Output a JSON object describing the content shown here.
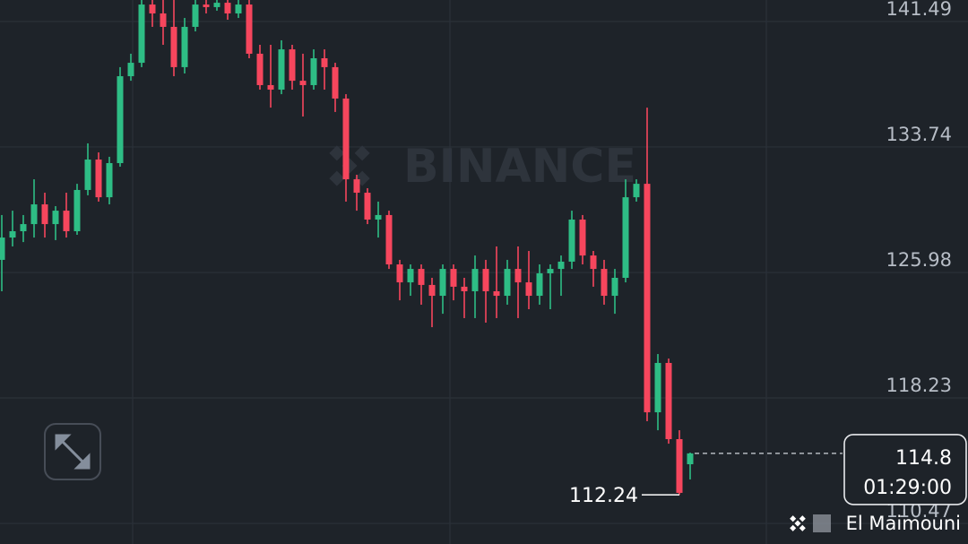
{
  "chart_data": {
    "type": "candlestick",
    "watermark": "BINANCE",
    "countdown": "01:29:00",
    "author": "El Maimouni",
    "up_color": "#2ebd85",
    "down_color": "#f6465d",
    "ylim": [
      109.2,
      142.82
    ],
    "yticks": [
      141.49,
      133.74,
      125.98,
      118.23,
      110.47
    ],
    "grid": true,
    "ohlc": [
      [
        126.76,
        129.53,
        124.82,
        128.14
      ],
      [
        128.14,
        129.8,
        127.59,
        128.53
      ],
      [
        128.53,
        129.53,
        127.86,
        128.97
      ],
      [
        128.97,
        131.74,
        128.14,
        130.19
      ],
      [
        130.19,
        130.91,
        128.14,
        128.97
      ],
      [
        128.97,
        130.08,
        127.98,
        129.8
      ],
      [
        129.8,
        130.91,
        128.14,
        128.53
      ],
      [
        128.53,
        131.46,
        128.31,
        131.08
      ],
      [
        131.08,
        133.96,
        130.75,
        132.96
      ],
      [
        132.96,
        133.4,
        130.36,
        130.63
      ],
      [
        130.63,
        133.13,
        130.19,
        132.74
      ],
      [
        132.74,
        138.67,
        132.52,
        138.11
      ],
      [
        138.11,
        139.5,
        137.83,
        138.94
      ],
      [
        138.94,
        142.82,
        138.67,
        142.54
      ],
      [
        142.54,
        142.82,
        141.16,
        141.99
      ],
      [
        141.99,
        142.82,
        140.05,
        141.16
      ],
      [
        141.16,
        142.82,
        138.11,
        138.67
      ],
      [
        138.67,
        141.71,
        138.28,
        141.16
      ],
      [
        141.16,
        142.82,
        140.88,
        142.54
      ],
      [
        142.54,
        142.82,
        141.99,
        142.38
      ],
      [
        142.38,
        142.82,
        142.16,
        142.65
      ],
      [
        142.65,
        142.82,
        141.6,
        141.99
      ],
      [
        141.99,
        142.82,
        141.71,
        142.54
      ],
      [
        142.54,
        142.82,
        139.22,
        139.5
      ],
      [
        139.5,
        140.05,
        137.28,
        137.56
      ],
      [
        137.56,
        140.05,
        136.17,
        137.28
      ],
      [
        137.28,
        140.33,
        137.0,
        139.77
      ],
      [
        139.77,
        140.05,
        137.28,
        137.83
      ],
      [
        137.83,
        139.5,
        135.62,
        137.56
      ],
      [
        137.56,
        139.77,
        137.28,
        139.22
      ],
      [
        139.22,
        139.77,
        137.28,
        138.67
      ],
      [
        138.67,
        138.94,
        135.9,
        136.73
      ],
      [
        136.73,
        137.0,
        130.36,
        131.74
      ],
      [
        131.74,
        132.02,
        129.8,
        130.91
      ],
      [
        130.91,
        131.19,
        128.97,
        129.25
      ],
      [
        129.25,
        130.36,
        128.14,
        129.53
      ],
      [
        129.53,
        129.8,
        126.2,
        126.48
      ],
      [
        126.48,
        126.76,
        124.26,
        125.37
      ],
      [
        125.37,
        126.48,
        124.54,
        126.2
      ],
      [
        126.2,
        126.48,
        123.99,
        125.21
      ],
      [
        125.21,
        125.65,
        122.6,
        124.54
      ],
      [
        124.54,
        126.48,
        123.43,
        126.2
      ],
      [
        126.2,
        126.48,
        124.26,
        125.1
      ],
      [
        125.1,
        125.65,
        123.16,
        124.82
      ],
      [
        124.82,
        127.03,
        123.16,
        126.2
      ],
      [
        126.2,
        126.76,
        122.88,
        124.82
      ],
      [
        124.82,
        127.59,
        123.16,
        124.54
      ],
      [
        124.54,
        126.76,
        123.99,
        126.2
      ],
      [
        126.2,
        127.59,
        123.16,
        125.37
      ],
      [
        125.37,
        127.31,
        123.71,
        124.54
      ],
      [
        124.54,
        126.48,
        123.99,
        125.93
      ],
      [
        125.93,
        126.48,
        123.71,
        126.2
      ],
      [
        126.2,
        127.03,
        124.54,
        126.65
      ],
      [
        126.65,
        129.8,
        126.2,
        129.25
      ],
      [
        129.25,
        129.53,
        126.48,
        127.03
      ],
      [
        127.03,
        127.31,
        125.1,
        126.2
      ],
      [
        126.2,
        126.76,
        123.99,
        124.54
      ],
      [
        124.54,
        126.2,
        123.43,
        125.65
      ],
      [
        125.65,
        131.74,
        125.37,
        130.63
      ],
      [
        130.63,
        131.74,
        130.36,
        131.46
      ],
      [
        131.46,
        136.17,
        116.79,
        117.34
      ],
      [
        117.34,
        120.94,
        116.23,
        120.39
      ],
      [
        120.39,
        120.66,
        115.4,
        115.68
      ],
      [
        115.68,
        116.23,
        112.24,
        112.36
      ],
      [
        114.13,
        114.85,
        113.19,
        114.8
      ]
    ]
  }
}
